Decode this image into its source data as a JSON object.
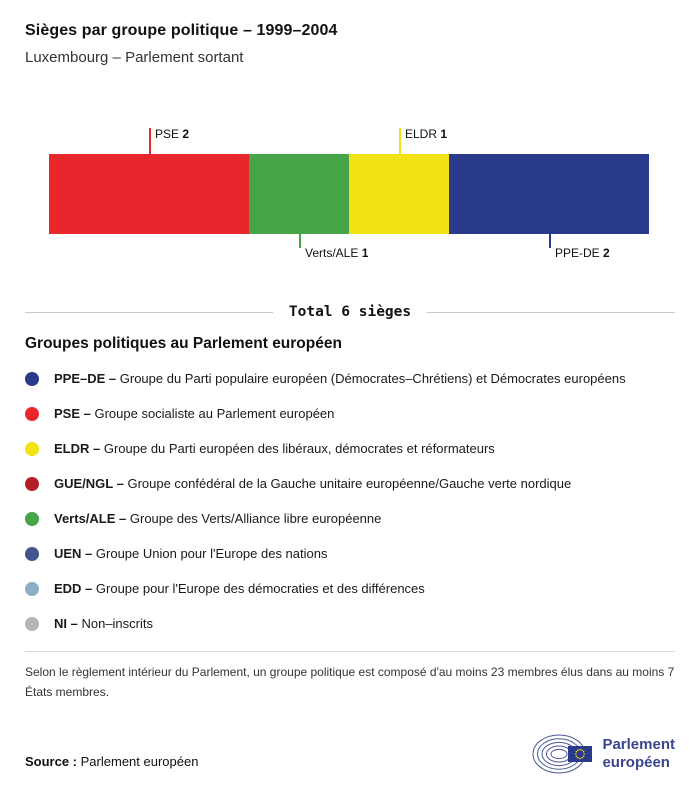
{
  "header": {
    "title": "Sièges par groupe politique – 1999–2004",
    "subtitle": "Luxembourg – Parlement sortant"
  },
  "chart_data": {
    "type": "bar",
    "orientation": "horizontal-stacked",
    "title": "Sièges par groupe politique – 1999–2004",
    "subtitle": "Luxembourg – Parlement sortant",
    "total": 6,
    "total_label": "Total 6 sièges",
    "categories": [
      "PSE",
      "Verts/ALE",
      "ELDR",
      "PPE-DE"
    ],
    "values": [
      2,
      1,
      1,
      2
    ],
    "segments": [
      {
        "name": "PSE",
        "seats": 2,
        "color": "#e8262b",
        "label_position": "top"
      },
      {
        "name": "Verts/ALE",
        "seats": 1,
        "color": "#46a546",
        "label_position": "bottom"
      },
      {
        "name": "ELDR",
        "seats": 1,
        "color": "#f2e113",
        "label_position": "top"
      },
      {
        "name": "PPE-DE",
        "seats": 2,
        "color": "#2a3b8c",
        "label_position": "bottom"
      }
    ]
  },
  "legend": {
    "heading": "Groupes politiques au Parlement européen",
    "items": [
      {
        "name": "PPE–DE",
        "color": "#2a3b8c",
        "description": "Groupe du Parti populaire européen (Démocrates–Chrétiens) et Démocrates européens"
      },
      {
        "name": "PSE",
        "color": "#e8262b",
        "description": "Groupe socialiste au Parlement européen"
      },
      {
        "name": "ELDR",
        "color": "#f2e113",
        "description": "Groupe du Parti européen des libéraux, démocrates et réformateurs"
      },
      {
        "name": "GUE/NGL",
        "color": "#b21f24",
        "description": "Groupe confédéral de la Gauche unitaire européenne/Gauche verte nordique"
      },
      {
        "name": "Verts/ALE",
        "color": "#46a546",
        "description": "Groupe des Verts/Alliance libre européenne"
      },
      {
        "name": "UEN",
        "color": "#42548e",
        "description": "Groupe Union pour l'Europe des nations"
      },
      {
        "name": "EDD",
        "color": "#8cafc8",
        "description": "Groupe pour l'Europe des démocraties et des différences"
      },
      {
        "name": "NI",
        "color": "#b5b5b5",
        "description": "Non–inscrits"
      }
    ]
  },
  "footnote": "Selon le règlement intérieur du Parlement, un groupe politique est composé d'au moins 23 membres élus dans au moins 7 États membres.",
  "source": {
    "label": "Source :",
    "value": "Parlement européen"
  },
  "logo": {
    "line1": "Parlement",
    "line2": "européen"
  }
}
